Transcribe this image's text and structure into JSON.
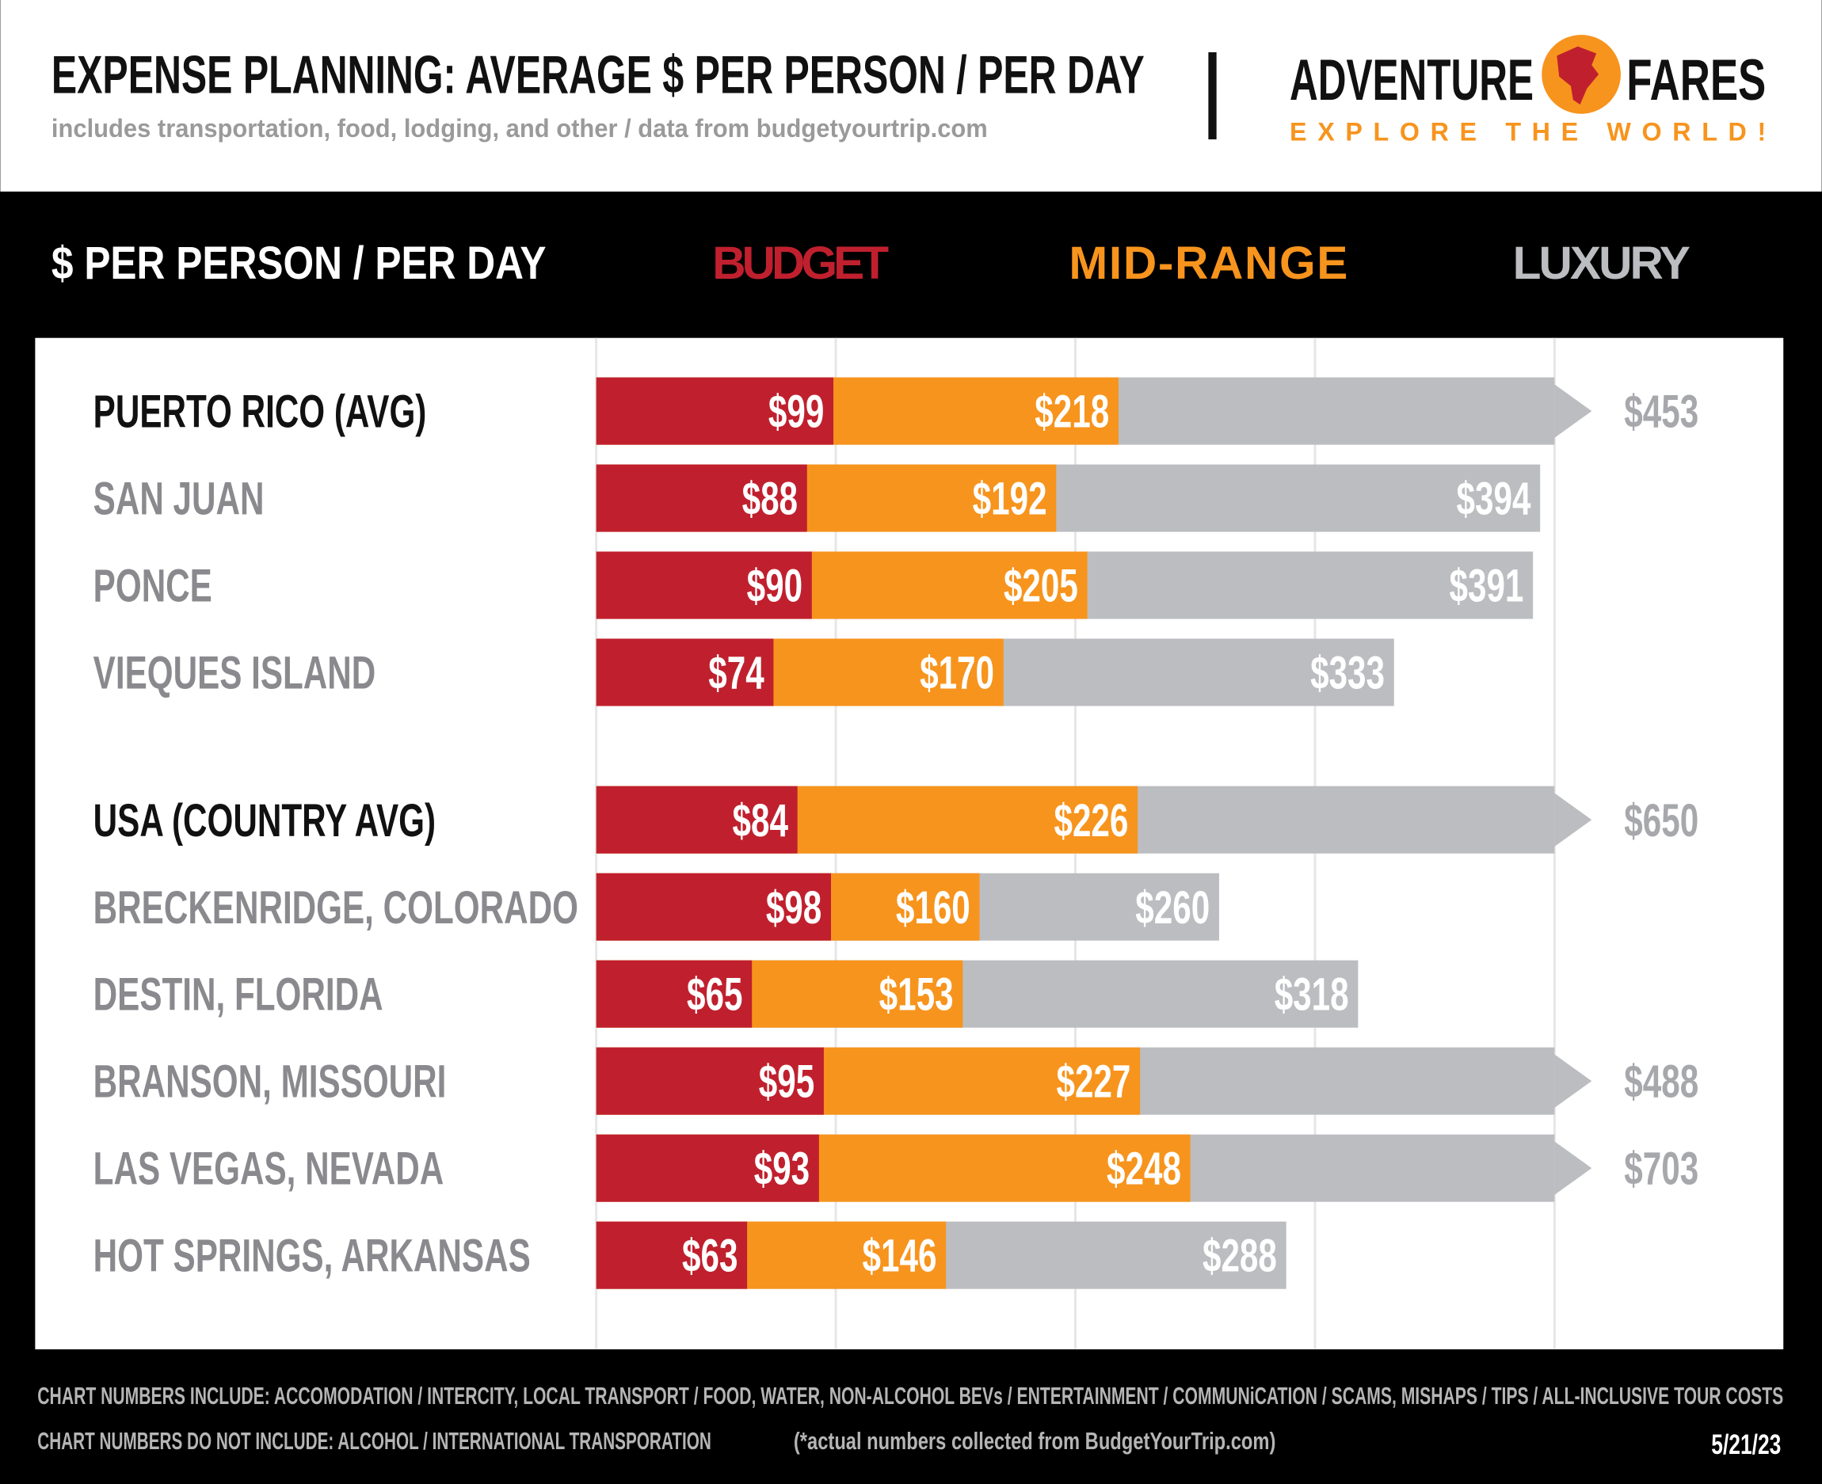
{
  "header": {
    "title": "EXPENSE PLANNING: AVERAGE $ PER PERSON / PER DAY",
    "subtitle": "includes transportation, food, lodging, and other / data from budgetyourtrip.com",
    "logo_left": "ADVENTURE",
    "logo_right": "FARES",
    "tagline": "EXPLORE THE WORLD!"
  },
  "chart_data": {
    "type": "bar",
    "orientation": "horizontal",
    "legend_title": "$ PER PERSON / PER DAY",
    "categories": [
      "PUERTO RICO (AVG)",
      "SAN JUAN",
      "PONCE",
      "VIEQUES ISLAND",
      "USA (COUNTRY AVG)",
      "BRECKENRIDGE, COLORADO",
      "DESTIN, FLORIDA",
      "BRANSON, MISSOURI",
      "LAS VEGAS, NEVADA",
      "HOT SPRINGS, ARKANSAS"
    ],
    "highlight": [
      0,
      4
    ],
    "series": [
      {
        "name": "BUDGET",
        "color": "#c0202e",
        "values": [
          99,
          88,
          90,
          74,
          84,
          98,
          65,
          95,
          93,
          63
        ],
        "value_labels": [
          "$99",
          "$88",
          "$90",
          "$74",
          "$84",
          "$98",
          "$65",
          "$95",
          "$93",
          "$63"
        ]
      },
      {
        "name": "MID-RANGE",
        "color": "#f7941d",
        "values": [
          218,
          192,
          205,
          170,
          226,
          160,
          153,
          227,
          248,
          146
        ],
        "value_labels": [
          "$218",
          "$192",
          "$205",
          "$170",
          "$226",
          "$160",
          "$153",
          "$227",
          "$248",
          "$146"
        ]
      },
      {
        "name": "LUXURY",
        "color": "#bcbdc0",
        "values": [
          453,
          394,
          391,
          333,
          650,
          260,
          318,
          488,
          703,
          288
        ],
        "value_labels": [
          "$453",
          "$394",
          "$391",
          "$333",
          "$650",
          "$260",
          "$318",
          "$488",
          "$703",
          "$288"
        ]
      }
    ],
    "xlim": [
      0,
      400
    ],
    "xticks": [
      0,
      100,
      200,
      300,
      400
    ],
    "grid": true
  },
  "footer": {
    "includes": "CHART NUMBERS INCLUDE:  ACCOMODATION / INTERCITY, LOCAL TRANSPORT / FOOD, WATER, NON-ALCOHOL BEVs / ENTERTAINMENT / COMMUNiCATION / SCAMS, MISHAPS / TIPS / ALL-INCLUSIVE TOUR COSTS",
    "excludes": "CHART NUMBERS DO NOT INCLUDE:  ALCOHOL / INTERNATIONAL TRANSPORATION",
    "source": "(*actual numbers collected from BudgetYourTrip.com)",
    "date": "5/21/23"
  }
}
